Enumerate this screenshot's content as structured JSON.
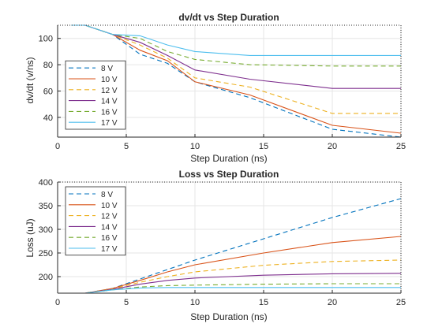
{
  "chart_data": [
    {
      "type": "line",
      "title": "dv/dt vs Step Duration",
      "xlabel": "Step Duration (ns)",
      "ylabel": "dv/dt (v/ns)",
      "xlim": [
        0,
        25
      ],
      "ylim": [
        25,
        110
      ],
      "xticks": [
        "0",
        "5",
        "10",
        "15",
        "20",
        "25"
      ],
      "yticks": [
        "40",
        "60",
        "80",
        "100"
      ],
      "grid": true,
      "legend_location": "southwest",
      "series": [
        {
          "name": "8 V",
          "color": "#0072BD",
          "dash": "dashed",
          "x": [
            1,
            2,
            4,
            6,
            8,
            10,
            14,
            20,
            25
          ],
          "y": [
            110,
            110,
            103,
            88,
            81,
            67,
            55,
            31,
            25
          ]
        },
        {
          "name": "10 V",
          "color": "#D95319",
          "dash": "solid",
          "x": [
            1,
            2,
            4,
            6,
            8,
            10,
            14,
            20,
            25
          ],
          "y": [
            110,
            110,
            103,
            91,
            83,
            67,
            57,
            34,
            28
          ]
        },
        {
          "name": "12 V",
          "color": "#EDB120",
          "dash": "dashed",
          "x": [
            1,
            2,
            4,
            6,
            8,
            10,
            14,
            20,
            25
          ],
          "y": [
            110,
            110,
            103,
            95,
            85,
            70,
            63,
            43,
            43
          ]
        },
        {
          "name": "14 V",
          "color": "#7E2F8E",
          "dash": "solid",
          "x": [
            1,
            2,
            4,
            6,
            8,
            10,
            14,
            20,
            25
          ],
          "y": [
            110,
            110,
            103,
            97,
            87,
            76,
            69,
            62,
            62
          ]
        },
        {
          "name": "16 V",
          "color": "#77AC30",
          "dash": "dashed",
          "x": [
            1,
            2,
            4,
            6,
            8,
            10,
            14,
            20,
            25
          ],
          "y": [
            110,
            110,
            103,
            100,
            90,
            84,
            80,
            79,
            79
          ]
        },
        {
          "name": "17 V",
          "color": "#4DBEEE",
          "dash": "solid",
          "x": [
            1,
            2,
            4,
            6,
            8,
            10,
            14,
            20,
            25
          ],
          "y": [
            110,
            110,
            103,
            102,
            95,
            90,
            87,
            87,
            87
          ]
        }
      ]
    },
    {
      "type": "line",
      "title": "Loss vs Step Duration",
      "xlabel": "Step Duration (ns)",
      "ylabel": "Loss (uJ)",
      "xlim": [
        0,
        25
      ],
      "ylim": [
        165,
        400
      ],
      "xticks": [
        "0",
        "5",
        "10",
        "15",
        "20",
        "25"
      ],
      "yticks": [
        "200",
        "250",
        "300",
        "350",
        "400"
      ],
      "grid": true,
      "legend_location": "northwest",
      "series": [
        {
          "name": "8 V",
          "color": "#0072BD",
          "dash": "dashed",
          "x": [
            1,
            2,
            4,
            6,
            8,
            10,
            15,
            20,
            25
          ],
          "y": [
            165,
            165,
            175,
            195,
            215,
            235,
            280,
            325,
            365
          ]
        },
        {
          "name": "10 V",
          "color": "#D95319",
          "dash": "solid",
          "x": [
            1,
            2,
            4,
            6,
            8,
            10,
            15,
            20,
            25
          ],
          "y": [
            165,
            165,
            175,
            192,
            210,
            225,
            250,
            272,
            285
          ]
        },
        {
          "name": "12 V",
          "color": "#EDB120",
          "dash": "dashed",
          "x": [
            1,
            2,
            4,
            6,
            8,
            10,
            15,
            20,
            25
          ],
          "y": [
            165,
            165,
            174,
            188,
            200,
            210,
            224,
            232,
            235
          ]
        },
        {
          "name": "14 V",
          "color": "#7E2F8E",
          "dash": "solid",
          "x": [
            1,
            2,
            4,
            6,
            8,
            10,
            15,
            20,
            25
          ],
          "y": [
            165,
            165,
            173,
            184,
            192,
            197,
            203,
            206,
            207
          ]
        },
        {
          "name": "16 V",
          "color": "#77AC30",
          "dash": "dashed",
          "x": [
            1,
            2,
            4,
            6,
            8,
            10,
            15,
            20,
            25
          ],
          "y": [
            165,
            165,
            172,
            178,
            181,
            182,
            184,
            185,
            185
          ]
        },
        {
          "name": "17 V",
          "color": "#4DBEEE",
          "dash": "solid",
          "x": [
            1,
            2,
            4,
            6,
            8,
            10,
            15,
            20,
            25
          ],
          "y": [
            165,
            165,
            172,
            176,
            177,
            177,
            177,
            177,
            177
          ]
        }
      ]
    }
  ]
}
